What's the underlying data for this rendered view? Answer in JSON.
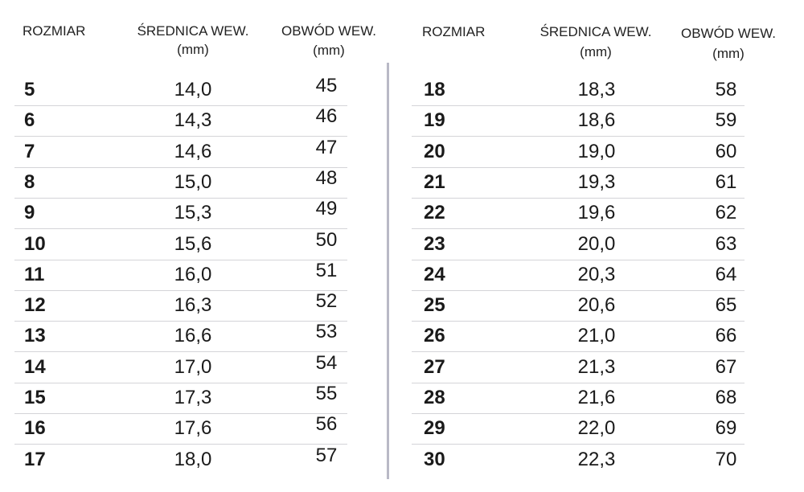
{
  "headers": {
    "size": "ROZMIAR",
    "diameter": "ŚREDNICA WEW.",
    "circumference": "OBWÓD WEW.",
    "unit": "(mm)"
  },
  "left_rows": [
    {
      "size": "5",
      "diameter": "14,0",
      "circumference": "45"
    },
    {
      "size": "6",
      "diameter": "14,3",
      "circumference": "46"
    },
    {
      "size": "7",
      "diameter": "14,6",
      "circumference": "47"
    },
    {
      "size": "8",
      "diameter": "15,0",
      "circumference": "48"
    },
    {
      "size": "9",
      "diameter": "15,3",
      "circumference": "49"
    },
    {
      "size": "10",
      "diameter": "15,6",
      "circumference": "50"
    },
    {
      "size": "11",
      "diameter": "16,0",
      "circumference": "51"
    },
    {
      "size": "12",
      "diameter": "16,3",
      "circumference": "52"
    },
    {
      "size": "13",
      "diameter": "16,6",
      "circumference": "53"
    },
    {
      "size": "14",
      "diameter": "17,0",
      "circumference": "54"
    },
    {
      "size": "15",
      "diameter": "17,3",
      "circumference": "55"
    },
    {
      "size": "16",
      "diameter": "17,6",
      "circumference": "56"
    },
    {
      "size": "17",
      "diameter": "18,0",
      "circumference": "57"
    }
  ],
  "right_rows": [
    {
      "size": "18",
      "diameter": "18,3",
      "circumference": "58"
    },
    {
      "size": "19",
      "diameter": "18,6",
      "circumference": "59"
    },
    {
      "size": "20",
      "diameter": "19,0",
      "circumference": "60"
    },
    {
      "size": "21",
      "diameter": "19,3",
      "circumference": "61"
    },
    {
      "size": "22",
      "diameter": "19,6",
      "circumference": "62"
    },
    {
      "size": "23",
      "diameter": "20,0",
      "circumference": "63"
    },
    {
      "size": "24",
      "diameter": "20,3",
      "circumference": "64"
    },
    {
      "size": "25",
      "diameter": "20,6",
      "circumference": "65"
    },
    {
      "size": "26",
      "diameter": "21,0",
      "circumference": "66"
    },
    {
      "size": "27",
      "diameter": "21,3",
      "circumference": "67"
    },
    {
      "size": "28",
      "diameter": "21,6",
      "circumference": "68"
    },
    {
      "size": "29",
      "diameter": "22,0",
      "circumference": "69"
    },
    {
      "size": "30",
      "diameter": "22,3",
      "circumference": "70"
    }
  ]
}
